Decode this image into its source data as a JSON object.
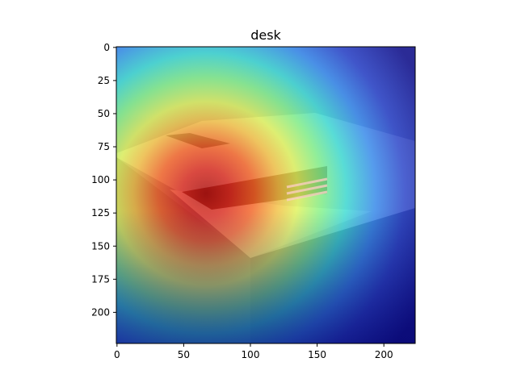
{
  "chart_data": {
    "type": "heatmap",
    "title": "desk",
    "xlabel": "",
    "ylabel": "",
    "xlim": [
      0,
      224
    ],
    "ylim": [
      224,
      0
    ],
    "x_ticks": [
      0,
      50,
      100,
      150,
      200
    ],
    "y_ticks": [
      0,
      25,
      50,
      75,
      100,
      125,
      150,
      175,
      200
    ],
    "grid": false,
    "legend": "none",
    "colormap": "jet",
    "overlay_background": "photo of a printer (grayscale)",
    "hotspot_center": [
      65,
      110
    ],
    "hotspot_peak": 1.0,
    "colors": {
      "peak": "#b40000",
      "high": "#ff4a14",
      "mid_high": "#ffd43a",
      "mid": "#c8ff5a",
      "mid_low": "#37ffd2",
      "low": "#2d8cff",
      "lowest": "#000080"
    }
  }
}
